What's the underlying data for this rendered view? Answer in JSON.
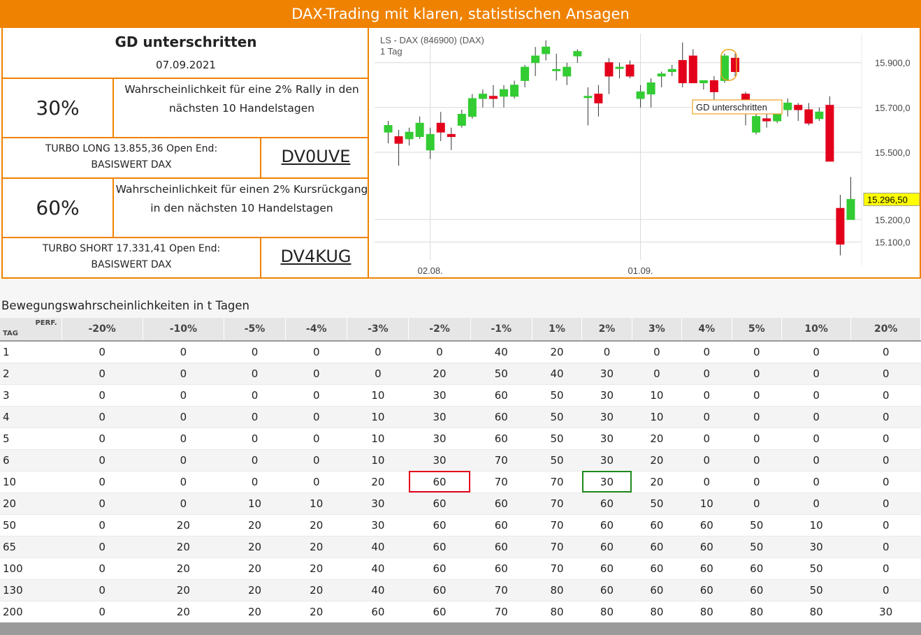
{
  "header": {
    "title": "DAX-Trading mit klaren, statistischen Ansagen"
  },
  "signal": {
    "title": "GD unterschritten",
    "date": "07.09.2021",
    "long": {
      "percent": "30%",
      "description": "Wahrscheinlichkeit für eine 2% Rally in den nächsten 10 Handelstagen",
      "turbo_line1": "TURBO LONG 13.855,36 Open End:",
      "turbo_line2": "BASISWERT DAX",
      "code": "DV0UVE"
    },
    "short": {
      "percent": "60%",
      "description": "Wahrscheinlichkeit für einen 2% Kursrückgang in den nächsten 10 Handelstagen",
      "turbo_line1": "TURBO SHORT 17.331,41 Open End:",
      "turbo_line2": "BASISWERT DAX",
      "code": "DV4KUG"
    }
  },
  "chart_data": {
    "type": "candlestick",
    "title": "LS - DAX (846900) (DAX)",
    "subtitle": "1 Tag",
    "x_tick_labels": [
      "02.08.",
      "01.09."
    ],
    "y_tick_labels": [
      "15.900,0",
      "15.700,0",
      "15.500,0",
      "15.200,0",
      "15.100,0"
    ],
    "y_ticks": [
      15900,
      15700,
      15500,
      15200,
      15100
    ],
    "ylim": [
      15020,
      16030
    ],
    "last_price_label": "15.296,50",
    "annotation": "GD unterschritten",
    "colors": {
      "up": "#33cc33",
      "down": "#e3001b",
      "last": "#ffff00"
    },
    "candles": [
      {
        "o": 15590,
        "h": 15640,
        "l": 15540,
        "c": 15620
      },
      {
        "o": 15570,
        "h": 15600,
        "l": 15440,
        "c": 15540
      },
      {
        "o": 15560,
        "h": 15610,
        "l": 15530,
        "c": 15590
      },
      {
        "o": 15570,
        "h": 15660,
        "l": 15560,
        "c": 15630
      },
      {
        "o": 15510,
        "h": 15610,
        "l": 15470,
        "c": 15580
      },
      {
        "o": 15630,
        "h": 15680,
        "l": 15550,
        "c": 15590
      },
      {
        "o": 15580,
        "h": 15610,
        "l": 15510,
        "c": 15570
      },
      {
        "o": 15620,
        "h": 15690,
        "l": 15610,
        "c": 15670
      },
      {
        "o": 15660,
        "h": 15760,
        "l": 15650,
        "c": 15740
      },
      {
        "o": 15740,
        "h": 15780,
        "l": 15700,
        "c": 15760
      },
      {
        "o": 15750,
        "h": 15800,
        "l": 15700,
        "c": 15740
      },
      {
        "o": 15750,
        "h": 15800,
        "l": 15700,
        "c": 15780
      },
      {
        "o": 15750,
        "h": 15820,
        "l": 15740,
        "c": 15800
      },
      {
        "o": 15820,
        "h": 15890,
        "l": 15790,
        "c": 15880
      },
      {
        "o": 15900,
        "h": 15970,
        "l": 15840,
        "c": 15930
      },
      {
        "o": 15940,
        "h": 16000,
        "l": 15910,
        "c": 15970
      },
      {
        "o": 15870,
        "h": 15940,
        "l": 15820,
        "c": 15870
      },
      {
        "o": 15840,
        "h": 15900,
        "l": 15800,
        "c": 15880
      },
      {
        "o": 15930,
        "h": 15960,
        "l": 15900,
        "c": 15950
      },
      {
        "o": 15750,
        "h": 15790,
        "l": 15620,
        "c": 15750
      },
      {
        "o": 15760,
        "h": 15800,
        "l": 15660,
        "c": 15720
      },
      {
        "o": 15900,
        "h": 15920,
        "l": 15760,
        "c": 15840
      },
      {
        "o": 15880,
        "h": 15900,
        "l": 15830,
        "c": 15880
      },
      {
        "o": 15890,
        "h": 15910,
        "l": 15830,
        "c": 15840
      },
      {
        "o": 15740,
        "h": 15800,
        "l": 15700,
        "c": 15770
      },
      {
        "o": 15760,
        "h": 15830,
        "l": 15700,
        "c": 15810
      },
      {
        "o": 15840,
        "h": 15860,
        "l": 15790,
        "c": 15850
      },
      {
        "o": 15860,
        "h": 15890,
        "l": 15840,
        "c": 15870
      },
      {
        "o": 15910,
        "h": 15990,
        "l": 15790,
        "c": 15810
      },
      {
        "o": 15930,
        "h": 15960,
        "l": 15810,
        "c": 15810
      },
      {
        "o": 15810,
        "h": 15820,
        "l": 15780,
        "c": 15820
      },
      {
        "o": 15820,
        "h": 15840,
        "l": 15680,
        "c": 15770
      },
      {
        "o": 15820,
        "h": 15940,
        "l": 15810,
        "c": 15930
      },
      {
        "o": 15920,
        "h": 15940,
        "l": 15840,
        "c": 15860
      },
      {
        "o": 15760,
        "h": 15770,
        "l": 15620,
        "c": 15680
      },
      {
        "o": 15590,
        "h": 15680,
        "l": 15580,
        "c": 15660
      },
      {
        "o": 15650,
        "h": 15690,
        "l": 15610,
        "c": 15640
      },
      {
        "o": 15640,
        "h": 15690,
        "l": 15630,
        "c": 15680
      },
      {
        "o": 15690,
        "h": 15740,
        "l": 15660,
        "c": 15720
      },
      {
        "o": 15710,
        "h": 15720,
        "l": 15640,
        "c": 15690
      },
      {
        "o": 15690,
        "h": 15720,
        "l": 15620,
        "c": 15630
      },
      {
        "o": 15650,
        "h": 15700,
        "l": 15640,
        "c": 15680
      },
      {
        "o": 15710,
        "h": 15750,
        "l": 15460,
        "c": 15460
      },
      {
        "o": 15250,
        "h": 15310,
        "l": 15040,
        "c": 15090
      },
      {
        "o": 15200,
        "h": 15390,
        "l": 15200,
        "c": 15290
      }
    ]
  },
  "table": {
    "title": "Bewegungswahrscheinlichkeiten in t Tagen",
    "corner_top": "PERF.",
    "corner_bottom": "TAG",
    "columns": [
      "-20%",
      "-10%",
      "-5%",
      "-4%",
      "-3%",
      "-2%",
      "-1%",
      "1%",
      "2%",
      "3%",
      "4%",
      "5%",
      "10%",
      "20%"
    ],
    "rows": [
      {
        "day": "1",
        "values": [
          "0",
          "0",
          "0",
          "0",
          "0",
          "0",
          "40",
          "20",
          "0",
          "0",
          "0",
          "0",
          "0",
          "0"
        ]
      },
      {
        "day": "2",
        "values": [
          "0",
          "0",
          "0",
          "0",
          "0",
          "20",
          "50",
          "40",
          "30",
          "0",
          "0",
          "0",
          "0",
          "0"
        ]
      },
      {
        "day": "3",
        "values": [
          "0",
          "0",
          "0",
          "0",
          "10",
          "30",
          "60",
          "50",
          "30",
          "10",
          "0",
          "0",
          "0",
          "0"
        ]
      },
      {
        "day": "4",
        "values": [
          "0",
          "0",
          "0",
          "0",
          "10",
          "30",
          "60",
          "50",
          "30",
          "10",
          "0",
          "0",
          "0",
          "0"
        ]
      },
      {
        "day": "5",
        "values": [
          "0",
          "0",
          "0",
          "0",
          "10",
          "30",
          "60",
          "50",
          "30",
          "20",
          "0",
          "0",
          "0",
          "0"
        ]
      },
      {
        "day": "6",
        "values": [
          "0",
          "0",
          "0",
          "0",
          "10",
          "30",
          "70",
          "50",
          "30",
          "20",
          "0",
          "0",
          "0",
          "0"
        ]
      },
      {
        "day": "10",
        "values": [
          "0",
          "0",
          "0",
          "0",
          "20",
          "60",
          "70",
          "70",
          "30",
          "20",
          "0",
          "0",
          "0",
          "0"
        ]
      },
      {
        "day": "20",
        "values": [
          "0",
          "0",
          "10",
          "10",
          "30",
          "60",
          "60",
          "70",
          "60",
          "50",
          "10",
          "0",
          "0",
          "0"
        ]
      },
      {
        "day": "50",
        "values": [
          "0",
          "20",
          "20",
          "20",
          "30",
          "60",
          "60",
          "70",
          "60",
          "60",
          "60",
          "50",
          "10",
          "0"
        ]
      },
      {
        "day": "65",
        "values": [
          "0",
          "20",
          "20",
          "20",
          "40",
          "60",
          "60",
          "70",
          "60",
          "60",
          "60",
          "50",
          "30",
          "0"
        ]
      },
      {
        "day": "100",
        "values": [
          "0",
          "20",
          "20",
          "20",
          "40",
          "60",
          "60",
          "70",
          "60",
          "60",
          "60",
          "60",
          "50",
          "0"
        ]
      },
      {
        "day": "130",
        "values": [
          "0",
          "20",
          "20",
          "20",
          "40",
          "60",
          "70",
          "80",
          "60",
          "60",
          "60",
          "60",
          "50",
          "0"
        ]
      },
      {
        "day": "200",
        "values": [
          "0",
          "20",
          "20",
          "20",
          "60",
          "60",
          "70",
          "80",
          "80",
          "80",
          "80",
          "80",
          "80",
          "30"
        ]
      }
    ]
  }
}
